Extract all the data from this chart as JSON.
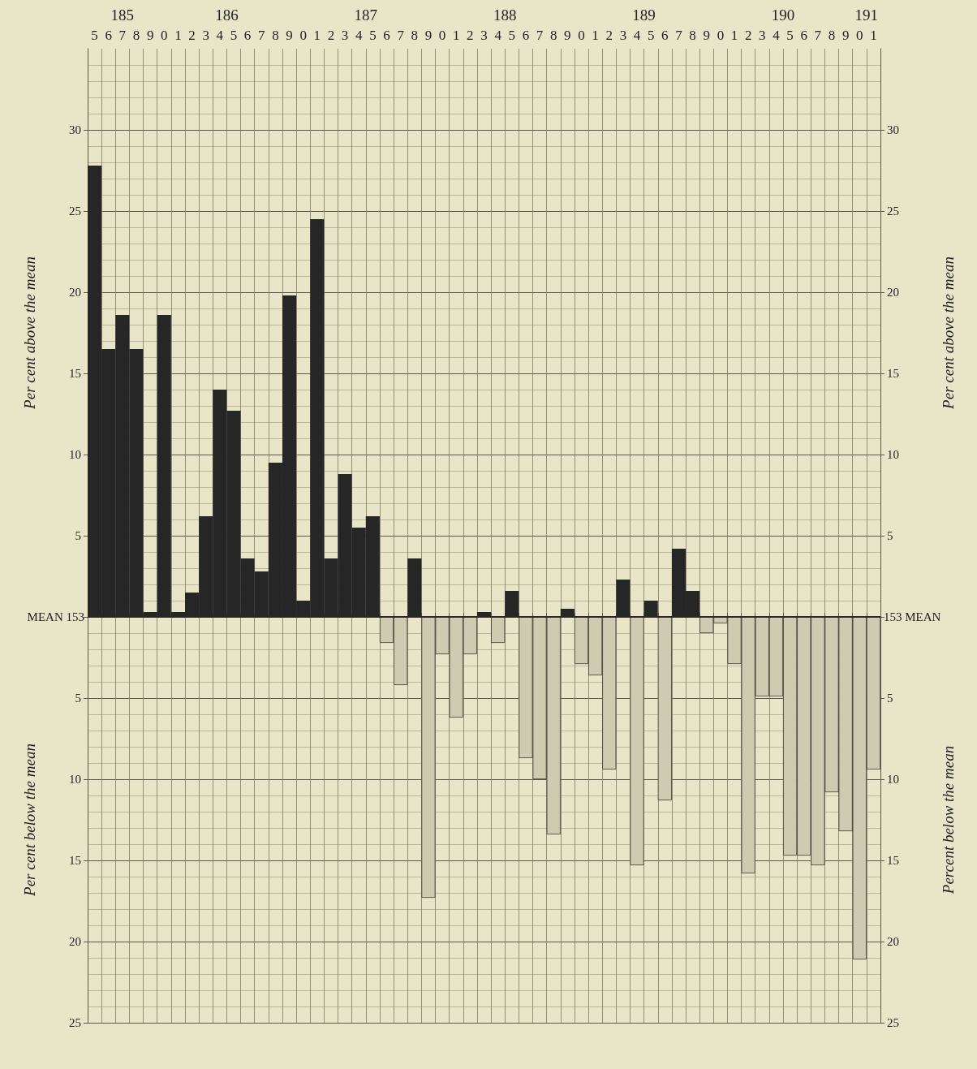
{
  "chart_data": {
    "type": "bar",
    "ylabel": "Per cent above the mean",
    "y2label": "Per cent above the mean",
    "annotations": [
      "Per cent below the mean",
      "Percent below the mean",
      "185",
      "186",
      "187",
      "188",
      "189",
      "190",
      "191",
      "153 MEAN"
    ],
    "categories": [
      "5",
      "6",
      "7",
      "8",
      "9",
      "0",
      "1",
      "2",
      "3",
      "4",
      "5",
      "6",
      "7",
      "8",
      "9",
      "0",
      "1",
      "2",
      "3",
      "4",
      "5",
      "6",
      "7",
      "8",
      "9",
      "0",
      "1",
      "2",
      "3",
      "4",
      "5",
      "6",
      "7",
      "8",
      "9",
      "0",
      "1",
      "2",
      "3",
      "4",
      "5",
      "6",
      "7",
      "8",
      "9",
      "0",
      "1",
      "2",
      "3",
      "4",
      "5",
      "6",
      "7",
      "8",
      "9",
      "0",
      "1"
    ],
    "values": [
      27.8,
      16.5,
      18.6,
      16.5,
      0.3,
      18.6,
      0.3,
      1.5,
      6.2,
      14.0,
      12.7,
      3.6,
      2.8,
      9.5,
      19.8,
      1.0,
      24.5,
      3.6,
      8.8,
      5.5,
      6.2,
      -1.6,
      -4.2,
      3.6,
      -17.3,
      -2.3,
      -6.2,
      -2.3,
      0.3,
      -1.6,
      1.6,
      -8.7,
      -10.0,
      -13.4,
      0.5,
      -2.9,
      -3.6,
      -9.4,
      2.3,
      -15.3,
      1.0,
      -11.3,
      4.2,
      1.6,
      -1.0,
      -0.4,
      -2.9,
      -15.8,
      -4.9,
      -4.9,
      -14.7,
      -14.7,
      -15.3,
      -10.8,
      -13.2,
      -21.1,
      -9.4
    ],
    "colors": [
      "#262626",
      "#262626",
      "#262626",
      "#262626",
      "#262626",
      "#262626",
      "#262626",
      "#262626",
      "#262626",
      "#262626",
      "#262626",
      "#262626",
      "#262626",
      "#262626",
      "#262626",
      "#262626",
      "#262626",
      "#262626",
      "#262626",
      "#262626",
      "#262626",
      "#cfcbb0",
      "#cfcbb0",
      "#262626",
      "#cfcbb0",
      "#cfcbb0",
      "#cfcbb0",
      "#cfcbb0",
      "#262626",
      "#cfcbb0",
      "#262626",
      "#cfcbb0",
      "#cfcbb0",
      "#cfcbb0",
      "#262626",
      "#cfcbb0",
      "#cfcbb0",
      "#cfcbb0",
      "#262626",
      "#cfcbb0",
      "#262626",
      "#cfcbb0",
      "#262626",
      "#262626",
      "#cfcbb0",
      "#cfcbb0",
      "#cfcbb0",
      "#cfcbb0",
      "#cfcbb0",
      "#cfcbb0",
      "#cfcbb0",
      "#cfcbb0",
      "#cfcbb0",
      "#cfcbb0",
      "#cfcbb0",
      "#cfcbb0",
      "#cfcbb0"
    ],
    "ylim": [
      -25,
      35
    ],
    "yticks": [
      {
        "value": -25,
        "label": "25"
      },
      {
        "value": -20,
        "label": "20"
      },
      {
        "value": -15,
        "label": "15"
      },
      {
        "value": -10,
        "label": "10"
      },
      {
        "value": -5,
        "label": "5"
      },
      {
        "value": 0,
        "label": null
      },
      5,
      10,
      15,
      20,
      25,
      30
    ],
    "y2lim": [
      -25,
      35
    ],
    "y2ticks": [
      {
        "value": -25,
        "label": "25"
      },
      {
        "value": -20,
        "label": "20"
      },
      {
        "value": -15,
        "label": "15"
      },
      {
        "value": -10,
        "label": "10"
      },
      {
        "value": -5,
        "label": "5"
      },
      {
        "value": 0,
        "label": null
      },
      5,
      10,
      15,
      20,
      25,
      30
    ],
    "ref_lines": [
      {
        "axis": "y",
        "value": 0,
        "label": "MEAN 153",
        "color": "#2a2820"
      }
    ],
    "grid": true
  }
}
